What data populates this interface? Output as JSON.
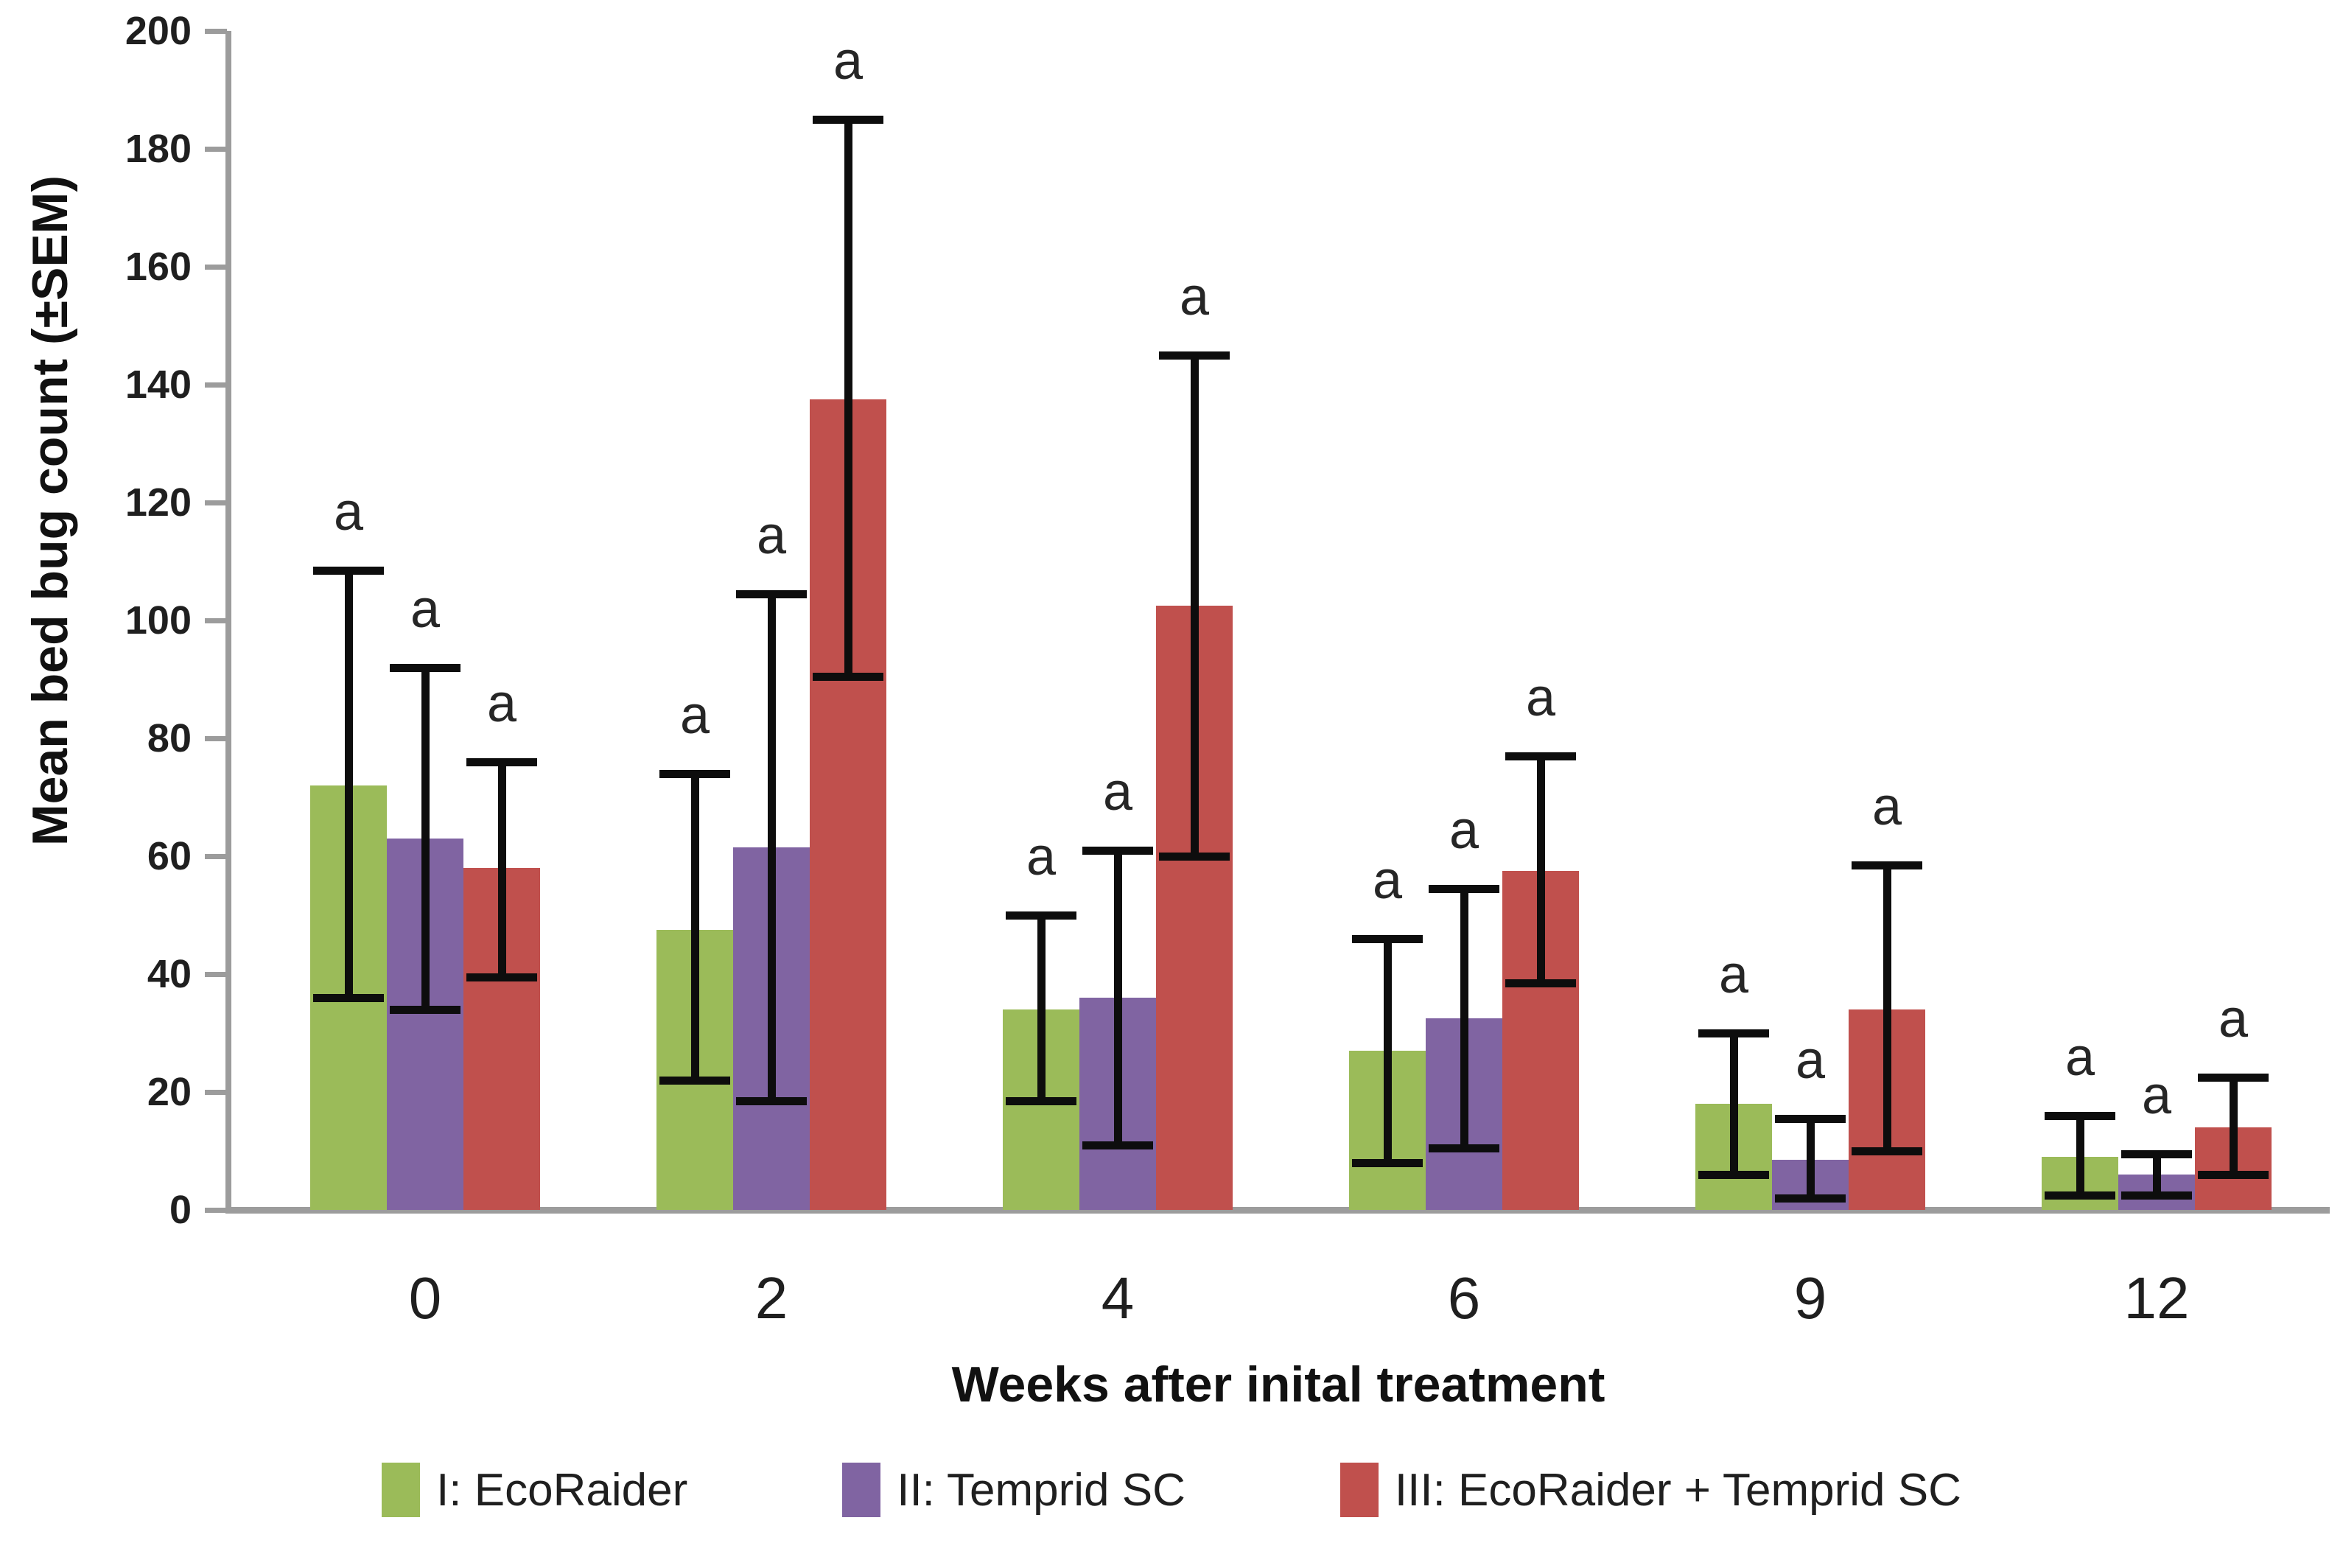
{
  "chart_data": {
    "type": "bar",
    "title": "",
    "xlabel": "Weeks after inital treatment",
    "ylabel": "Mean bed bug count (±SEM)",
    "ylim": [
      0,
      200
    ],
    "ytick_step": 20,
    "y_tick_labels": [
      "0",
      "20",
      "40",
      "60",
      "80",
      "100",
      "120",
      "140",
      "160",
      "180",
      "200"
    ],
    "categories": [
      "0",
      "2",
      "4",
      "6",
      "9",
      "12"
    ],
    "series": [
      {
        "name": "I: EcoRaider",
        "color": "#9bbb59",
        "values": [
          72,
          47.5,
          34,
          27,
          18,
          9
        ],
        "err_low": [
          36,
          22,
          18.5,
          8,
          6,
          2.5
        ],
        "err_high": [
          108.5,
          74,
          50,
          46,
          30,
          16
        ]
      },
      {
        "name": "II: Temprid SC",
        "color": "#8064a2",
        "values": [
          63,
          61.5,
          36,
          32.5,
          8.5,
          6
        ],
        "err_low": [
          34,
          18.5,
          11,
          10.5,
          2,
          2.5
        ],
        "err_high": [
          92,
          104.5,
          61,
          54.5,
          15.5,
          9.5
        ]
      },
      {
        "name": "III: EcoRaider + Temprid SC",
        "color": "#c0504d",
        "values": [
          58,
          137.5,
          102.5,
          57.5,
          34,
          14
        ],
        "err_low": [
          39.5,
          90.5,
          60,
          38.5,
          10,
          6
        ],
        "err_high": [
          76,
          185,
          145,
          77,
          58.5,
          22.5
        ]
      }
    ],
    "bar_annotation": "a",
    "legend_position": "bottom",
    "grid": false,
    "error_bar_color": "#0d0d0d",
    "axis_color": "#9c9c9c"
  }
}
